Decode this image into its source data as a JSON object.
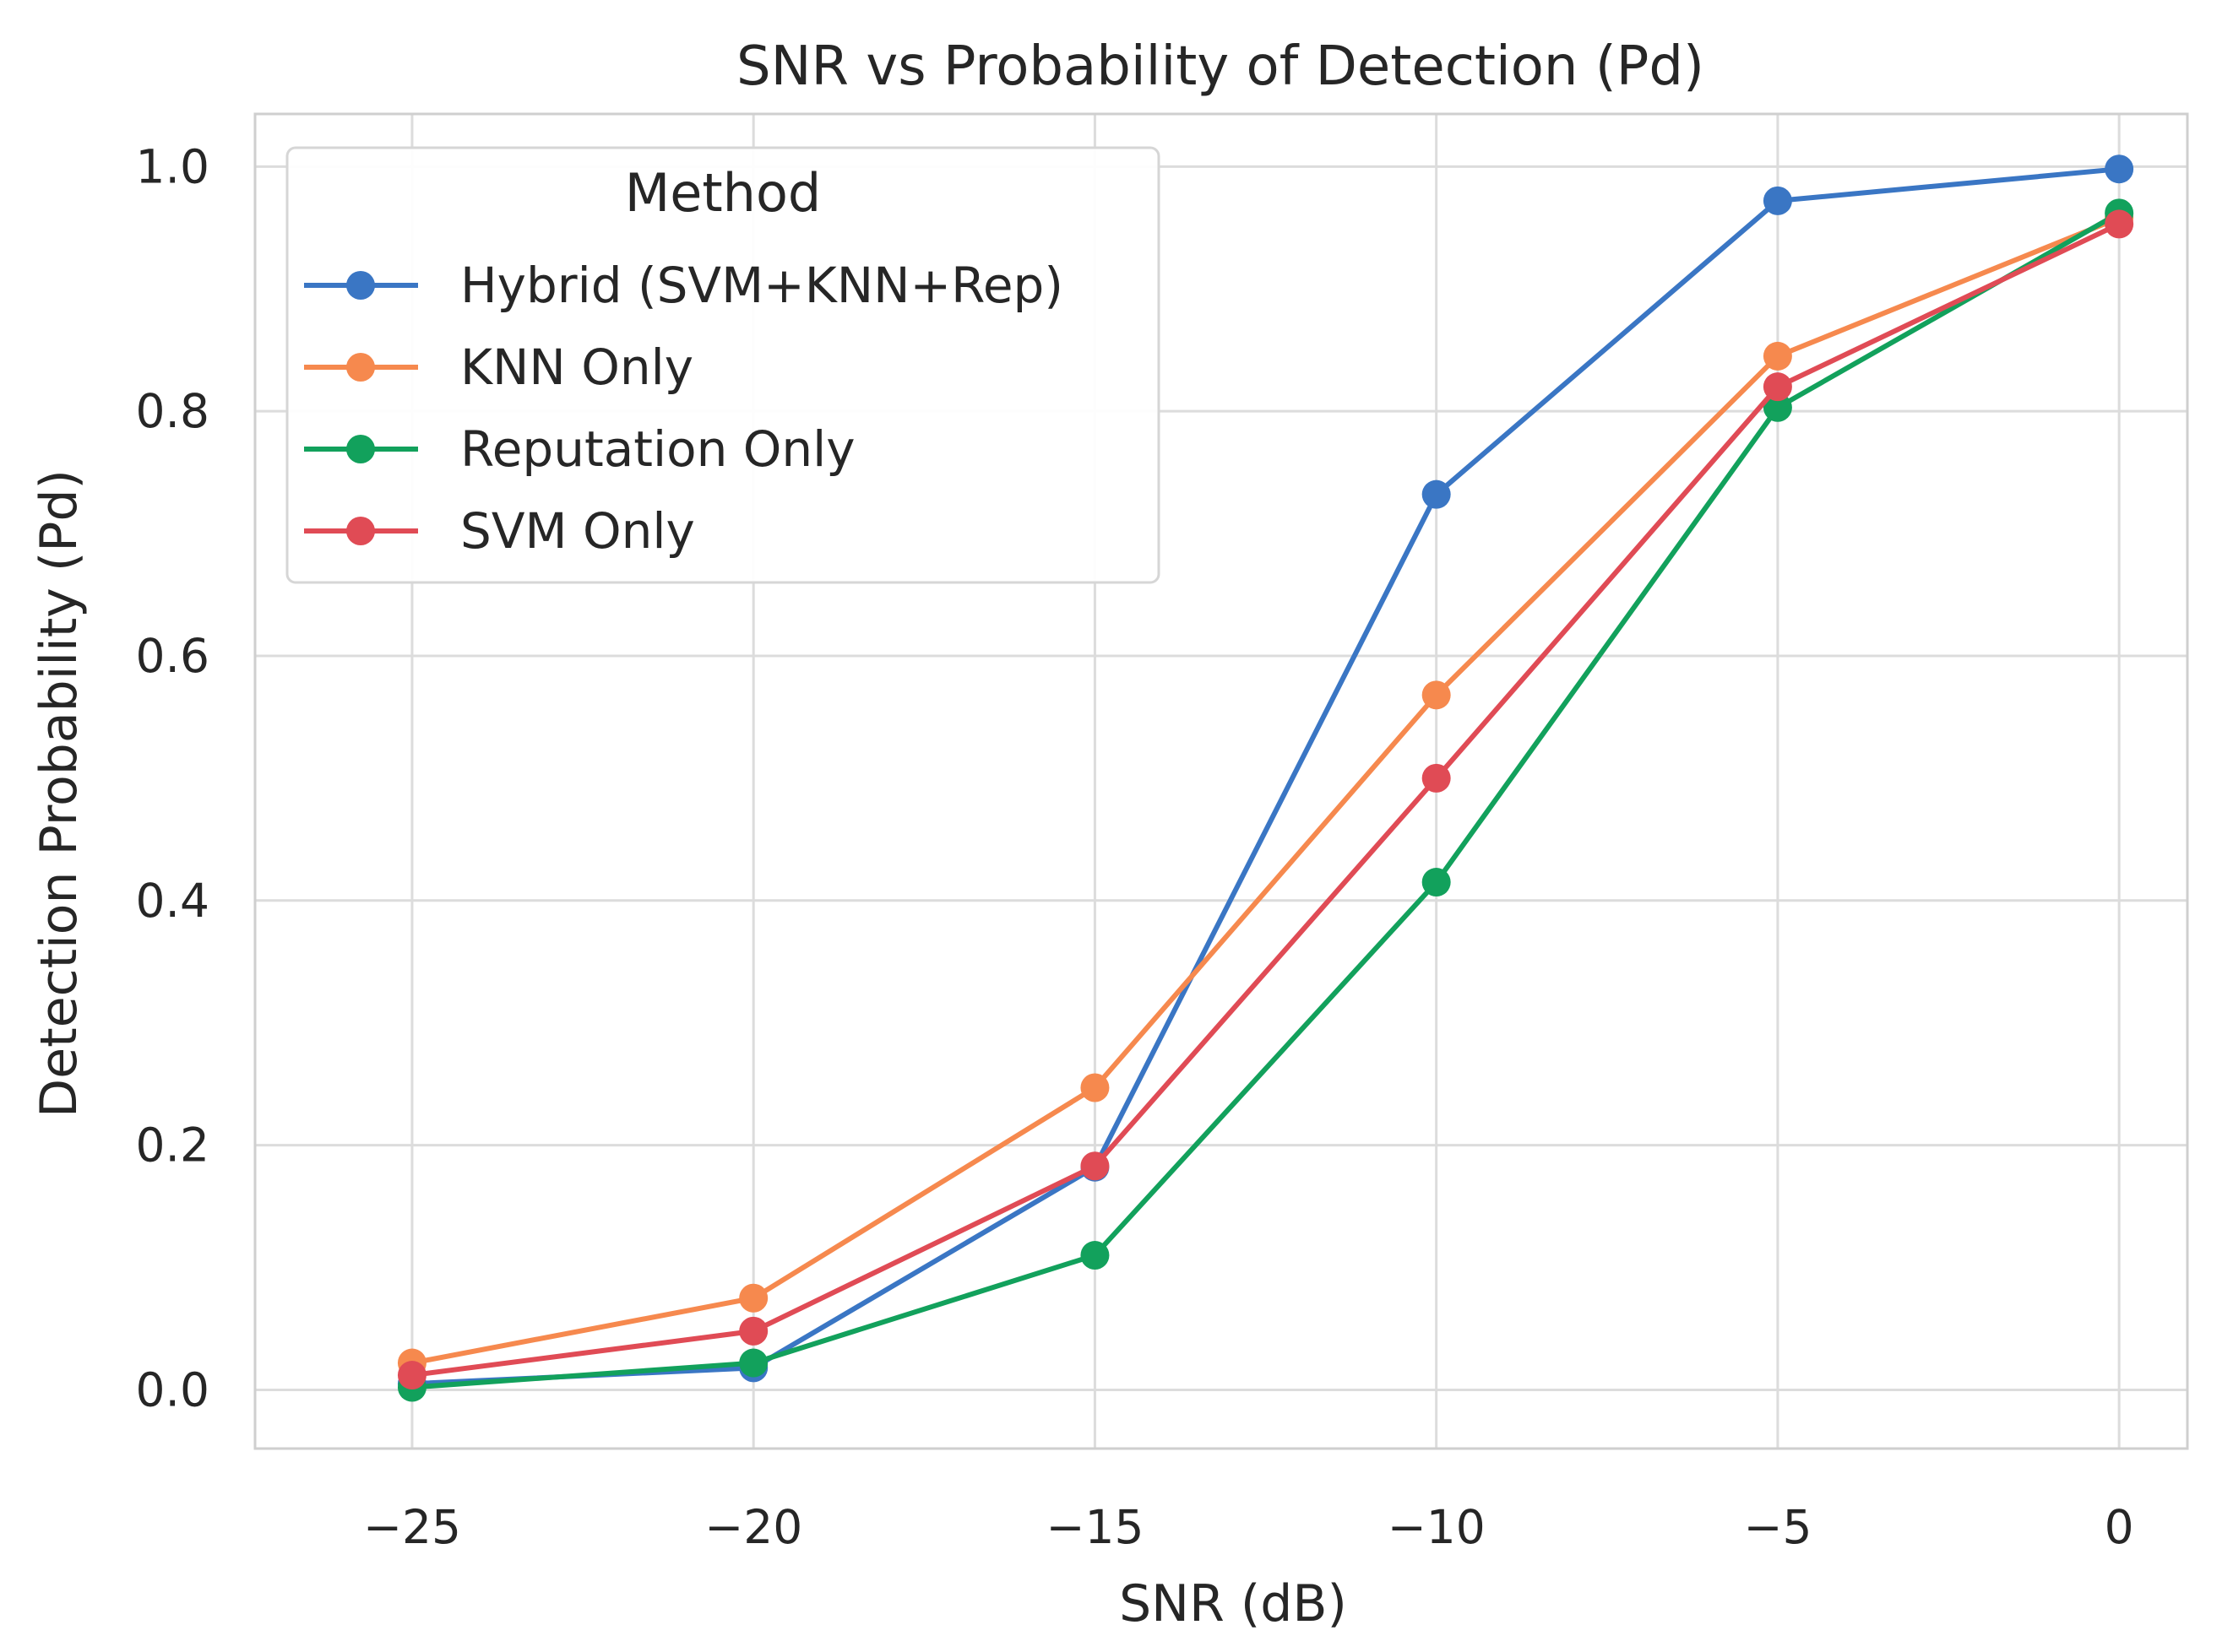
{
  "chart_data": {
    "type": "line",
    "title": "SNR vs Probability of Detection (Pd)",
    "xlabel": "SNR (dB)",
    "ylabel": "Detection Probability (Pd)",
    "x": [
      -25,
      -20,
      -15,
      -10,
      -5,
      0
    ],
    "xticks": [
      -25,
      -20,
      -15,
      -10,
      -5,
      0
    ],
    "xtick_labels": [
      "−25",
      "−20",
      "−15",
      "−10",
      "−5",
      "0"
    ],
    "yticks": [
      0.0,
      0.2,
      0.4,
      0.6,
      0.8,
      1.0
    ],
    "ytick_labels": [
      "0.0",
      "0.2",
      "0.4",
      "0.6",
      "0.8",
      "1.0"
    ],
    "xlim": [
      -27.3,
      1.0
    ],
    "ylim": [
      -0.048,
      1.043
    ],
    "grid": true,
    "legend": {
      "title": "Method",
      "position": "top-left"
    },
    "series": [
      {
        "name": "Hybrid (SVM+KNN+Rep)",
        "color": "#3a76c4",
        "values": [
          0.005,
          0.018,
          0.182,
          0.732,
          0.972,
          0.998
        ]
      },
      {
        "name": "KNN Only",
        "color": "#f6894e",
        "values": [
          0.022,
          0.075,
          0.247,
          0.568,
          0.845,
          0.958
        ]
      },
      {
        "name": "Reputation Only",
        "color": "#12a15c",
        "values": [
          0.002,
          0.022,
          0.11,
          0.415,
          0.803,
          0.962
        ]
      },
      {
        "name": "SVM Only",
        "color": "#e04b55",
        "values": [
          0.012,
          0.048,
          0.183,
          0.5,
          0.82,
          0.953
        ]
      }
    ]
  }
}
